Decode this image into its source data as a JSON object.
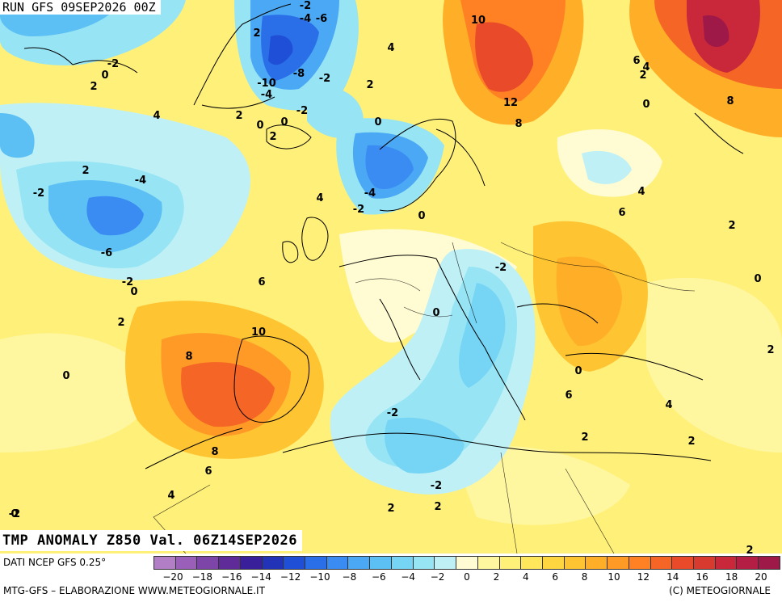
{
  "header": {
    "run_label": "RUN GFS 09SEP2026 00Z",
    "valid_label": "TMP ANOMALY Z850 Val. 06Z14SEP2026"
  },
  "footer": {
    "source": "DATI NCEP GFS 0.25°",
    "credit_left": "MTG-GFS – ELABORAZIONE WWW.METEOGIORNALE.IT",
    "credit_right": "(C) METEOGIORNALE"
  },
  "legend": {
    "colors": [
      "#b27fc6",
      "#9a5fb8",
      "#7e45a8",
      "#5e2b98",
      "#3a1f9a",
      "#2333b8",
      "#1f4fd6",
      "#2a6fe8",
      "#3a8cf2",
      "#4aa8f4",
      "#5cc0f4",
      "#76d4f4",
      "#96e4f4",
      "#bff0f6",
      "#fffbd2",
      "#fff6a0",
      "#fff07a",
      "#ffe65a",
      "#ffd640",
      "#ffc432",
      "#ffae28",
      "#ff9a26",
      "#ff8124",
      "#f56626",
      "#e84a2a",
      "#d93a30",
      "#c8283a",
      "#b51e44",
      "#9e1848"
    ],
    "tick_labels": [
      "−20",
      "−18",
      "−16",
      "−14",
      "−12",
      "−10",
      "−8",
      "−6",
      "−4",
      "−2",
      "0",
      "2",
      "4",
      "6",
      "8",
      "10",
      "12",
      "14",
      "16",
      "18",
      "20"
    ]
  },
  "map": {
    "labels": [
      {
        "t": "-2"
      },
      {
        "t": "-4"
      },
      {
        "t": "-6"
      },
      {
        "t": "10"
      },
      {
        "t": "2"
      },
      {
        "t": "4"
      },
      {
        "t": "-2"
      },
      {
        "t": "0"
      },
      {
        "t": "2"
      },
      {
        "t": "-8"
      },
      {
        "t": "-2"
      },
      {
        "t": "-10"
      },
      {
        "t": "-4"
      },
      {
        "t": "-2"
      },
      {
        "t": "2"
      },
      {
        "t": "12"
      },
      {
        "t": "6"
      },
      {
        "t": "4"
      },
      {
        "t": "2"
      },
      {
        "t": "8"
      },
      {
        "t": "4"
      },
      {
        "t": "2"
      },
      {
        "t": "0"
      },
      {
        "t": "0"
      },
      {
        "t": "2"
      },
      {
        "t": "0"
      },
      {
        "t": "8"
      },
      {
        "t": "0"
      },
      {
        "t": "-4"
      },
      {
        "t": "-2"
      },
      {
        "t": "2"
      },
      {
        "t": "0"
      },
      {
        "t": "-4"
      },
      {
        "t": "4"
      },
      {
        "t": "-2"
      },
      {
        "t": "4"
      },
      {
        "t": "0"
      },
      {
        "t": "6"
      },
      {
        "t": "2"
      },
      {
        "t": "-6"
      },
      {
        "t": "-2"
      },
      {
        "t": "-2"
      },
      {
        "t": "0"
      },
      {
        "t": "0"
      },
      {
        "t": "6"
      },
      {
        "t": "2"
      },
      {
        "t": "10"
      },
      {
        "t": "0"
      },
      {
        "t": "8"
      },
      {
        "t": "2"
      },
      {
        "t": "0"
      },
      {
        "t": "6"
      },
      {
        "t": "4"
      },
      {
        "t": "2"
      },
      {
        "t": "-2"
      },
      {
        "t": "2"
      },
      {
        "t": "8"
      },
      {
        "t": "2"
      },
      {
        "t": "6"
      },
      {
        "t": "-2"
      },
      {
        "t": "4"
      },
      {
        "t": "2"
      },
      {
        "t": "0"
      },
      {
        "t": "-2"
      },
      {
        "t": "2"
      }
    ]
  }
}
